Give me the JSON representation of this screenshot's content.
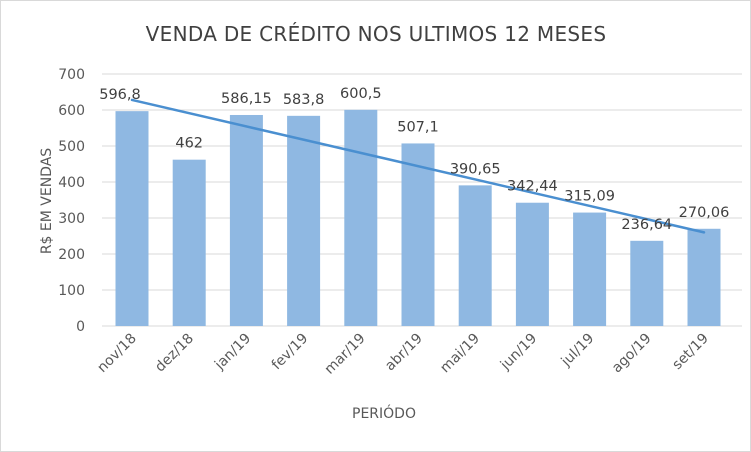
{
  "chart_data": {
    "type": "bar",
    "title": "VENDA DE CRÉDITO NOS ULTIMOS 12 MESES",
    "xlabel": "PERIÓDO",
    "ylabel": "R$ EM VENDAS",
    "ylim": [
      0,
      700
    ],
    "yticks": [
      0,
      100,
      200,
      300,
      400,
      500,
      600,
      700
    ],
    "categories": [
      "nov/18",
      "dez/18",
      "jan/19",
      "fev/19",
      "mar/19",
      "abr/19",
      "mai/19",
      "jun/19",
      "jul/19",
      "ago/19",
      "set/19"
    ],
    "values": [
      596.8,
      462,
      586.15,
      583.8,
      600.5,
      507.1,
      390.65,
      342.44,
      315.09,
      236.64,
      270.06
    ],
    "data_labels": [
      "596,8",
      "462",
      "586,15",
      "583,8",
      "600,5",
      "507,1",
      "390,65",
      "342,44",
      "315,09",
      "236,64",
      "270,06"
    ],
    "trendline": {
      "type": "linear",
      "start_value": 628,
      "end_value": 260
    },
    "grid": true,
    "legend": "none",
    "colors": {
      "bars": "#8fb8e2",
      "trendline": "#4a8fd0",
      "grid": "#d9d9d9",
      "text": "#595959"
    }
  }
}
